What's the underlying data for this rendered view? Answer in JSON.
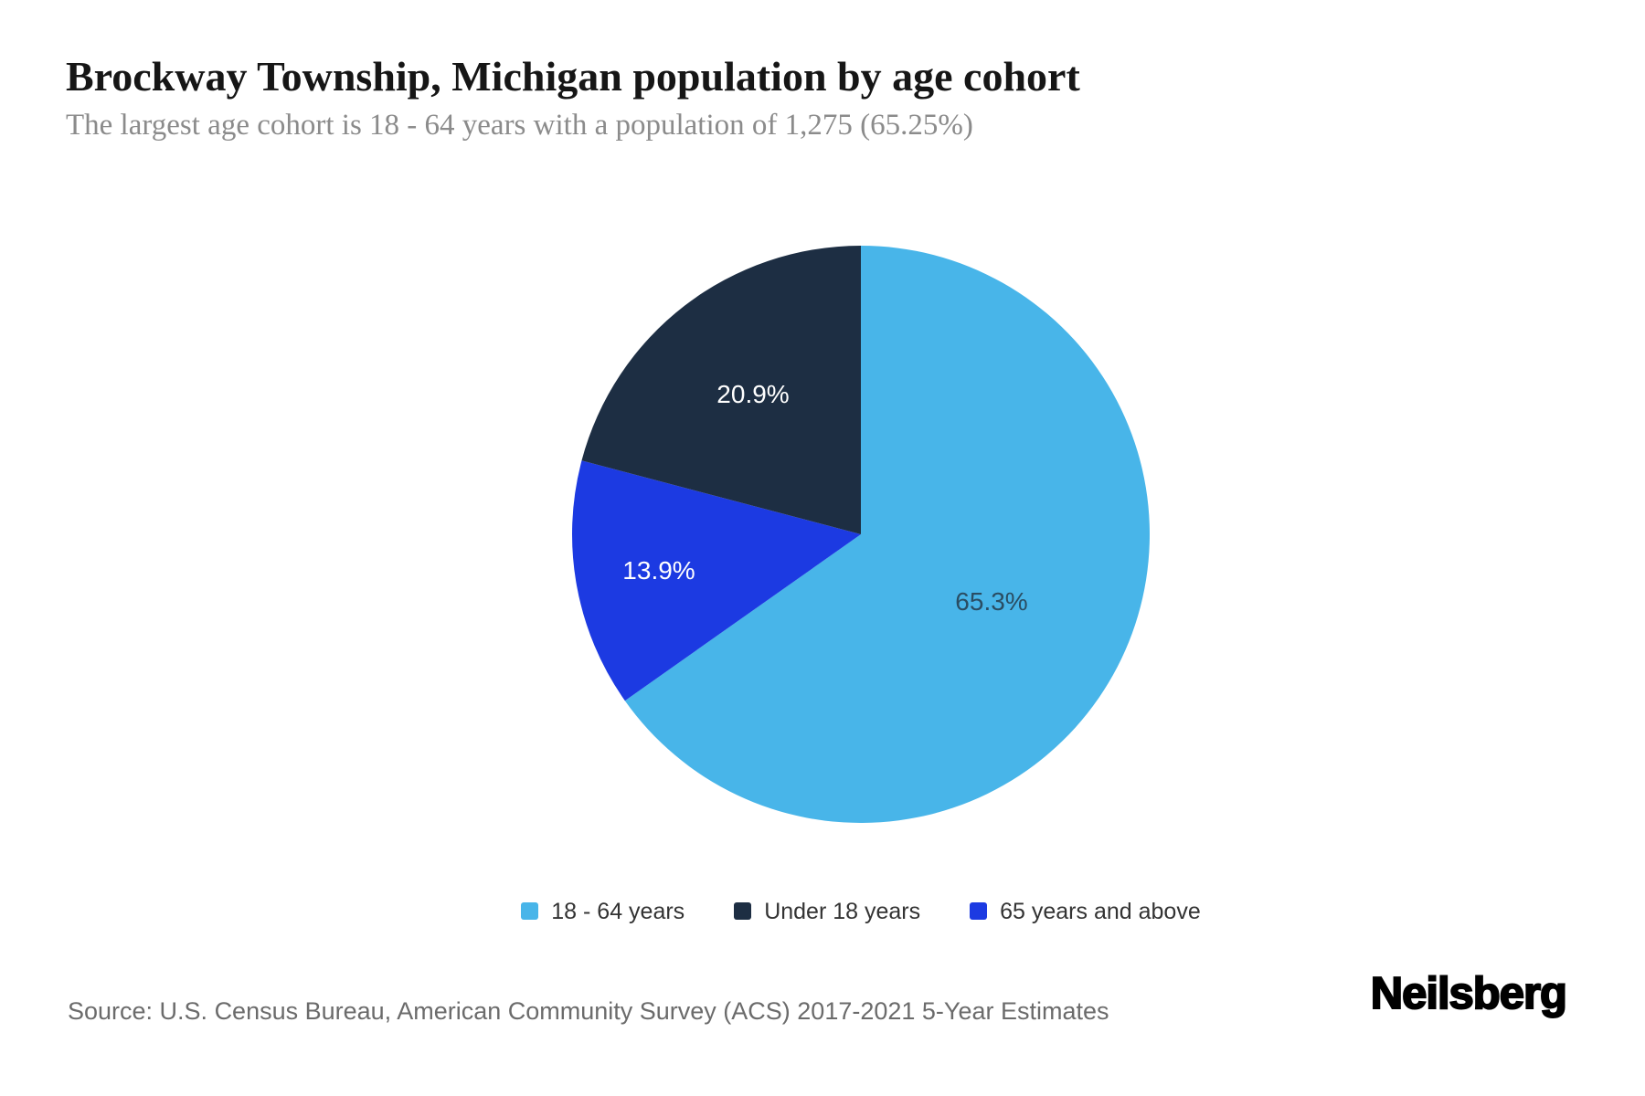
{
  "header": {
    "title": "Brockway Township, Michigan population by age cohort",
    "subtitle": "The largest age cohort is 18 - 64 years with a population of 1,275 (65.25%)"
  },
  "chart_data": {
    "type": "pie",
    "title": "Brockway Township, Michigan population by age cohort",
    "slices": [
      {
        "label": "18 - 64 years",
        "pct": 65.25,
        "pct_label": "65.3%",
        "color": "#48b5e9",
        "text_color": "#2a4d63",
        "label_radius_frac": 0.51
      },
      {
        "label": "Under 18 years",
        "pct": 20.9,
        "pct_label": "20.9%",
        "color": "#1d2e43",
        "text_color": "#ffffff",
        "label_radius_frac": 0.61
      },
      {
        "label": "65 years and above",
        "pct": 13.9,
        "pct_label": "13.9%",
        "color": "#1c3ae2",
        "text_color": "#ffffff",
        "label_radius_frac": 0.71
      }
    ],
    "start_angle_deg": 0,
    "clockwise_order_from_top": [
      0,
      2,
      1
    ],
    "legend_position": "bottom"
  },
  "footer": {
    "source": "Source: U.S. Census Bureau, American Community Survey (ACS) 2017-2021 5-Year Estimates",
    "brand": "Neilsberg"
  }
}
